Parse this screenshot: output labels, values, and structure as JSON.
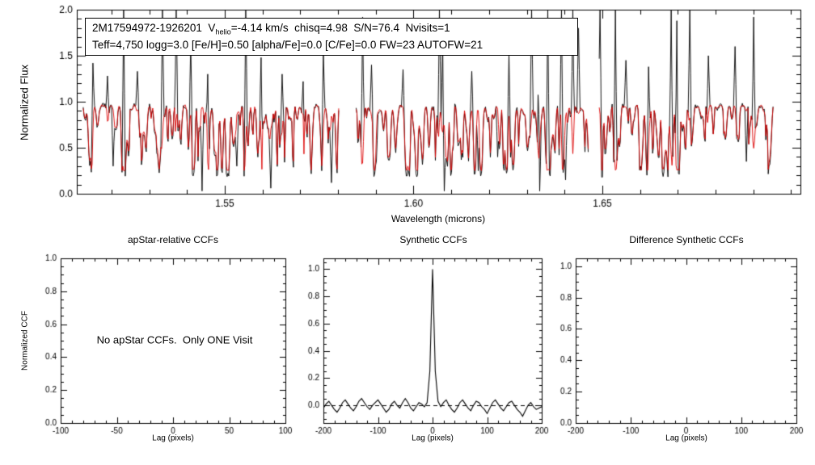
{
  "figure": {
    "background": "#ffffff",
    "axis_color": "#000000"
  },
  "spectrum_header": {
    "line1_prefix": "2M17594972-1926201  V",
    "line1_sub": "helio",
    "line1_rest": "=-4.14 km/s  chisq=4.98  S/N=76.4  Nvisits=1",
    "line2": "Teff=4,750 logg=3.0 [Fe/H]=0.50 [alpha/Fe]=0.0 [C/Fe]=0.0 FW=23 AUTOFW=21"
  },
  "labels": {
    "spectrum_ylabel": "Normalized Flux",
    "spectrum_xlabel": "Wavelength (microns)",
    "ccf_ylabel": "Normalized CCF",
    "lag_xlabel": "Lag (pixels)",
    "apstar_title": "apStar-relative CCFs",
    "synthetic_title": "Synthetic CCFs",
    "difference_title": "Difference Synthetic CCFs",
    "no_ccf_message": "No apStar CCFs.  Only ONE Visit"
  },
  "chart_data": [
    {
      "id": "spectrum",
      "type": "line",
      "title": "",
      "xlabel": "Wavelength (microns)",
      "ylabel": "Normalized Flux",
      "xlim": [
        1.5108,
        1.7025
      ],
      "ylim": [
        0.0,
        2.0
      ],
      "xticks": [
        1.55,
        1.6,
        1.65
      ],
      "xtick_labels": [
        "1.55",
        "1.60",
        "1.65"
      ],
      "x_minor": 0.01,
      "yticks": [
        0.0,
        0.5,
        1.0,
        1.5,
        2.0
      ],
      "ytick_labels": [
        "0.0",
        "0.5",
        "1.0",
        "1.5",
        "2.0"
      ],
      "y_minor": 0.1,
      "grid": false,
      "segments": [
        [
          1.5125,
          1.5805
        ],
        [
          1.5848,
          1.6465
        ],
        [
          1.6492,
          1.6955
        ]
      ],
      "baseline_flux": 0.958,
      "seed": 1234567,
      "series": [
        {
          "name": "observed spectrum",
          "color": "#000000"
        },
        {
          "name": "best-fit synthetic spectrum",
          "color": "#dd0000"
        }
      ],
      "up_spikes": [
        [
          1.515,
          1.42
        ],
        [
          1.519,
          1.28
        ],
        [
          1.5232,
          2.0
        ],
        [
          1.5268,
          1.33
        ],
        [
          1.5335,
          2.0
        ],
        [
          1.5372,
          2.0
        ],
        [
          1.541,
          1.62
        ],
        [
          1.5455,
          1.3
        ],
        [
          1.5556,
          2.0
        ],
        [
          1.5596,
          1.48
        ],
        [
          1.5652,
          1.3
        ],
        [
          1.5708,
          1.22
        ],
        [
          1.5762,
          1.55
        ],
        [
          1.5865,
          1.92
        ],
        [
          1.5888,
          1.4
        ],
        [
          1.5972,
          1.35
        ],
        [
          1.6068,
          2.0
        ],
        [
          1.6078,
          1.75
        ],
        [
          1.6155,
          1.33
        ],
        [
          1.6252,
          1.5
        ],
        [
          1.6312,
          2.0
        ],
        [
          1.6332,
          1.7
        ],
        [
          1.6356,
          2.0
        ],
        [
          1.6392,
          2.0
        ],
        [
          1.6422,
          2.0
        ],
        [
          1.6438,
          1.8
        ],
        [
          1.6495,
          2.0
        ],
        [
          1.6534,
          2.0
        ],
        [
          1.6562,
          1.45
        ],
        [
          1.6622,
          1.38
        ],
        [
          1.6682,
          2.0
        ],
        [
          1.6697,
          1.88
        ],
        [
          1.6732,
          2.0
        ],
        [
          1.6782,
          1.5
        ],
        [
          1.6852,
          1.6
        ],
        [
          1.6902,
          1.92
        ]
      ],
      "down_spikes": [
        [
          1.5205,
          0.3
        ],
        [
          1.544,
          0.03
        ],
        [
          1.5532,
          0.3
        ],
        [
          1.5622,
          0.06
        ],
        [
          1.5782,
          0.12
        ],
        [
          1.5902,
          0.35
        ],
        [
          1.6082,
          0.03
        ],
        [
          1.6172,
          0.25
        ],
        [
          1.6222,
          0.4
        ],
        [
          1.6335,
          0.03
        ],
        [
          1.6402,
          0.15
        ],
        [
          1.6602,
          0.3
        ],
        [
          1.6702,
          0.22
        ],
        [
          1.6882,
          0.35
        ]
      ]
    },
    {
      "id": "apstar_ccf",
      "type": "line",
      "title": "apStar-relative CCFs",
      "xlabel": "Lag (pixels)",
      "ylabel": "Normalized CCF",
      "xlim": [
        -100,
        100
      ],
      "ylim": [
        0.0,
        1.0
      ],
      "xticks": [
        -100,
        -50,
        0,
        50,
        100
      ],
      "xtick_labels": [
        "-100",
        "-50",
        "0",
        "50",
        "100"
      ],
      "x_minor": 10,
      "yticks": [
        0.0,
        0.2,
        0.4,
        0.6,
        0.8,
        1.0
      ],
      "ytick_labels": [
        "0.0",
        "0.2",
        "0.4",
        "0.6",
        "0.8",
        "1.0"
      ],
      "y_minor": 0.05,
      "grid": false,
      "message": "No apStar CCFs.  Only ONE Visit",
      "series": []
    },
    {
      "id": "synthetic_ccf",
      "type": "line",
      "title": "Synthetic CCFs",
      "xlabel": "Lag (pixels)",
      "ylabel": "",
      "xlim": [
        -200,
        200
      ],
      "ylim": [
        -0.13,
        1.08
      ],
      "xticks": [
        -200,
        -100,
        0,
        100,
        200
      ],
      "xtick_labels": [
        "-200",
        "-100",
        "0",
        "100",
        "200"
      ],
      "x_minor": 20,
      "yticks": [
        0.0,
        0.2,
        0.4,
        0.6,
        0.8,
        1.0
      ],
      "ytick_labels": [
        "0.0",
        "0.2",
        "0.4",
        "0.6",
        "0.8",
        "1.0"
      ],
      "y_minor": 0.05,
      "grid": false,
      "zero_line": true,
      "series_points": {
        "name": "synthetic CCF",
        "x_start": -200,
        "x_step": 5,
        "values": [
          -0.02,
          0.01,
          0.03,
          0.0,
          -0.03,
          -0.05,
          -0.02,
          0.02,
          0.04,
          0.01,
          -0.02,
          -0.04,
          -0.01,
          0.03,
          0.05,
          0.02,
          -0.01,
          -0.03,
          0.0,
          0.02,
          0.04,
          0.01,
          -0.02,
          -0.05,
          -0.03,
          0.01,
          0.03,
          0.0,
          -0.02,
          0.02,
          0.05,
          0.02,
          -0.02,
          -0.04,
          -0.01,
          0.02,
          0.01,
          -0.01,
          0.02,
          0.25,
          1.0,
          0.25,
          0.03,
          -0.01,
          0.02,
          0.04,
          0.0,
          -0.03,
          -0.05,
          -0.02,
          0.02,
          0.04,
          0.01,
          -0.02,
          -0.04,
          0.0,
          0.03,
          0.02,
          -0.01,
          -0.03,
          -0.06,
          -0.02,
          0.02,
          0.04,
          0.01,
          -0.02,
          -0.04,
          -0.01,
          0.02,
          0.03,
          0.0,
          -0.03,
          -0.05,
          -0.08,
          -0.04,
          0.0,
          0.02,
          -0.01,
          -0.03,
          -0.02,
          -0.01
        ]
      }
    },
    {
      "id": "difference_ccf",
      "type": "line",
      "title": "Difference Synthetic CCFs",
      "xlabel": "Lag (pixels)",
      "ylabel": "",
      "xlim": [
        -200,
        200
      ],
      "ylim": [
        0.0,
        1.05
      ],
      "xticks": [
        -200,
        -100,
        0,
        100,
        200
      ],
      "xtick_labels": [
        "-200",
        "-100",
        "0",
        "100",
        "200"
      ],
      "x_minor": 20,
      "yticks": [
        0.0,
        0.2,
        0.4,
        0.6,
        0.8,
        1.0
      ],
      "ytick_labels": [
        "0.0",
        "0.2",
        "0.4",
        "0.6",
        "0.8",
        "1.0"
      ],
      "y_minor": 0.05,
      "grid": false,
      "series": []
    }
  ]
}
